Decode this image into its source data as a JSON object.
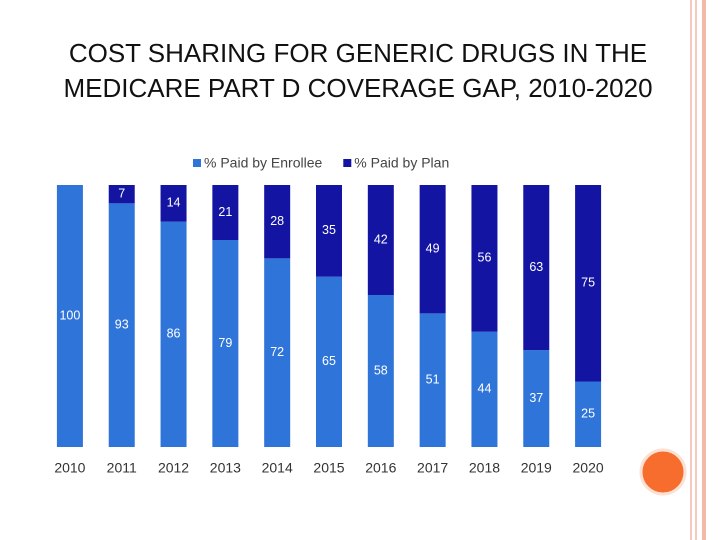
{
  "chart_data": {
    "type": "stacked-bar",
    "title": "COST SHARING FOR GENERIC DRUGS IN THE MEDICARE PART D COVERAGE GAP, 2010-2020",
    "categories": [
      "2010",
      "2011",
      "2012",
      "2013",
      "2014",
      "2015",
      "2016",
      "2017",
      "2018",
      "2019",
      "2020"
    ],
    "series": [
      {
        "name": "% Paid by Enrollee",
        "color": "#2f74d8",
        "values": [
          100,
          93,
          86,
          79,
          72,
          65,
          58,
          51,
          44,
          37,
          25
        ]
      },
      {
        "name": "% Paid by Plan",
        "color": "#1414a3",
        "values": [
          null,
          7,
          14,
          21,
          28,
          35,
          42,
          49,
          56,
          63,
          75
        ]
      }
    ],
    "legend": "top"
  }
}
